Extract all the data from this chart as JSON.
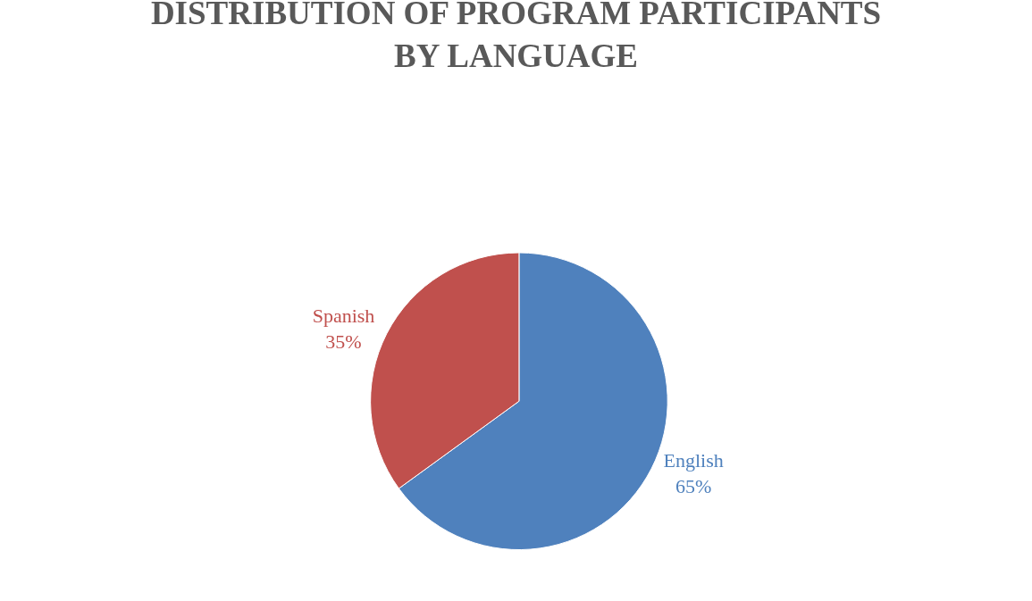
{
  "chart_data": {
    "type": "pie",
    "title": "DISTRIBUTION OF PROGRAM PARTICIPANTS\nBY LANGUAGE",
    "categories": [
      "English",
      "Spanish"
    ],
    "values": [
      65,
      35
    ],
    "value_labels": [
      "65%",
      "35%"
    ],
    "colors": [
      "#4f81bd",
      "#c0504d"
    ],
    "legend": false
  }
}
